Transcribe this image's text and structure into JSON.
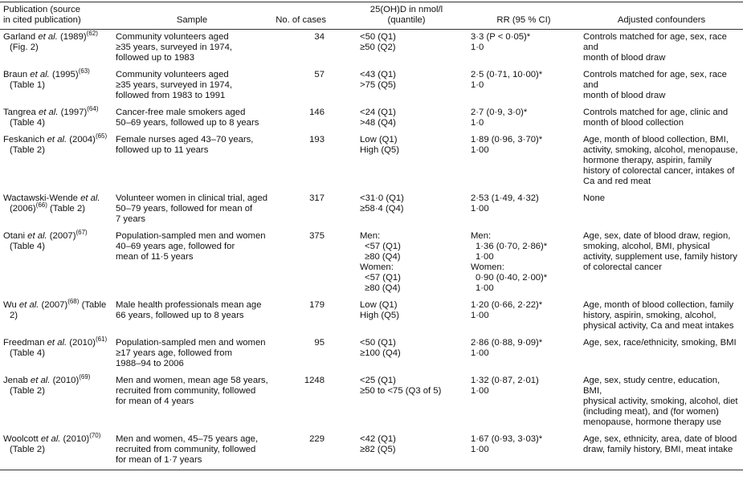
{
  "table": {
    "header": [
      "Publication (source in cited publication)",
      "Sample",
      "No. of cases",
      "25(OH)D in nmol/l (quantile)",
      "RR (95 % CI)",
      "Adjusted confounders"
    ],
    "rows": [
      {
        "publication": {
          "name": "Garland",
          "etal": "et al.",
          "year": "(1989)",
          "ref": "(62)",
          "source": "(Fig. 2)"
        },
        "sample": [
          "Community volunteers aged",
          "≥35 years, surveyed in 1974,",
          "followed up to 1983"
        ],
        "cases": 34,
        "quantile": [
          "<50 (Q1)",
          "≥50 (Q2)"
        ],
        "rr": [
          "3·3 (P < 0·05)*",
          "1·0"
        ],
        "confounders": [
          "Controls matched for age, sex, race and",
          "month of blood draw"
        ]
      },
      {
        "publication": {
          "name": "Braun",
          "etal": "et al.",
          "year": "(1995)",
          "ref": "(63)",
          "source": "(Table 1)"
        },
        "sample": [
          "Community volunteers aged",
          "≥35 years, surveyed in 1974,",
          "followed from 1983 to 1991"
        ],
        "cases": 57,
        "quantile": [
          "<43 (Q1)",
          ">75 (Q5)"
        ],
        "rr": [
          "2·5 (0·71, 10·00)*",
          "1·0"
        ],
        "confounders": [
          "Controls matched for age, sex, race and",
          "month of blood draw"
        ]
      },
      {
        "publication": {
          "name": "Tangrea",
          "etal": "et al.",
          "year": "(1997)",
          "ref": "(64)",
          "source": "(Table 4)"
        },
        "sample": [
          "Cancer-free male smokers aged",
          "50–69 years, followed up to 8 years"
        ],
        "cases": 146,
        "quantile": [
          "<24 (Q1)",
          ">48 (Q4)"
        ],
        "rr": [
          "2·7 (0·9, 3·0)*",
          "1·0"
        ],
        "confounders": [
          "Controls matched for age, clinic and",
          "month of blood collection"
        ]
      },
      {
        "publication": {
          "name": "Feskanich",
          "etal": "et al.",
          "year": "(2004)",
          "ref": "(65)",
          "source": "(Table 2)"
        },
        "sample": [
          "Female nurses aged 43–70 years,",
          "followed up to 11 years"
        ],
        "cases": 193,
        "quantile": [
          "Low (Q1)",
          "High (Q5)"
        ],
        "rr": [
          "1·89 (0·96, 3·70)*",
          "1·00"
        ],
        "confounders": [
          "Age, month of blood collection, BMI,",
          "activity, smoking, alcohol, menopause,",
          "hormone therapy, aspirin, family",
          "history of colorectal cancer, intakes of",
          "Ca and red meat"
        ]
      },
      {
        "publication": {
          "name": "Wactawski-Wende",
          "etal": "et al.",
          "year": "(2006)",
          "ref": "(66)",
          "source": "(Table 2)"
        },
        "sample": [
          "Volunteer women in clinical trial, aged",
          "50–79 years, followed for mean of",
          "7 years"
        ],
        "cases": 317,
        "quantile": [
          "<31·0 (Q1)",
          "≥58·4 (Q4)"
        ],
        "rr": [
          "2·53 (1·49, 4·32)",
          "1·00"
        ],
        "confounders": [
          "None"
        ]
      },
      {
        "publication": {
          "name": "Otani",
          "etal": "et al.",
          "year": "(2007)",
          "ref": "(67)",
          "source": "(Table 4)"
        },
        "sample": [
          "Population-sampled men and women",
          "40–69 years age, followed for",
          "mean of 11·5 years"
        ],
        "cases": 375,
        "quantile": [
          "Men:",
          "<57 (Q1)",
          "≥80 (Q4)",
          "Women:",
          "<57 (Q1)",
          "≥80 (Q4)"
        ],
        "rr": [
          "Men:",
          "1·36 (0·70, 2·86)*",
          "1·00",
          "Women:",
          "0·90 (0·40, 2·00)*",
          "1·00"
        ],
        "confounders": [
          "Age, sex, date of blood draw, region,",
          "smoking, alcohol, BMI, physical",
          "activity, supplement use, family history",
          "of colorectal cancer"
        ]
      },
      {
        "publication": {
          "name": "Wu",
          "etal": "et al.",
          "year": "(2007)",
          "ref": "(68)",
          "source": "(Table 2)"
        },
        "sample": [
          "Male health professionals mean age",
          "66 years, followed up to 8 years"
        ],
        "cases": 179,
        "quantile": [
          "Low (Q1)",
          "High (Q5)"
        ],
        "rr": [
          "1·20 (0·66, 2·22)*",
          "1·00"
        ],
        "confounders": [
          "Age, month of blood collection, family",
          "history, aspirin, smoking, alcohol,",
          "physical activity, Ca and meat intakes"
        ]
      },
      {
        "publication": {
          "name": "Freedman",
          "etal": "et al.",
          "year": "(2010)",
          "ref": "(61)",
          "source": "(Table 4)"
        },
        "sample": [
          "Population-sampled men and women",
          "≥17 years age, followed from",
          "1988–94 to 2006"
        ],
        "cases": 95,
        "quantile": [
          "<50 (Q1)",
          "≥100 (Q4)"
        ],
        "rr": [
          "2·86 (0·88, 9·09)*",
          "1·00"
        ],
        "confounders": [
          "Age, sex, race/ethnicity, smoking, BMI"
        ]
      },
      {
        "publication": {
          "name": "Jenab",
          "etal": "et al.",
          "year": "(2010)",
          "ref": "(69)",
          "source": "(Table 2)"
        },
        "sample": [
          "Men and women, mean age 58 years,",
          "recruited from community, followed",
          "for mean of 4 years"
        ],
        "cases": 1248,
        "quantile": [
          "<25 (Q1)",
          "≥50 to <75 (Q3 of 5)"
        ],
        "rr": [
          "1·32 (0·87, 2·01)",
          "1·00"
        ],
        "confounders": [
          "Age, sex, study centre, education, BMI,",
          "physical activity, smoking, alcohol, diet",
          "(including meat), and (for women)",
          "menopause, hormone therapy use"
        ]
      },
      {
        "publication": {
          "name": "Woolcott",
          "etal": "et al.",
          "year": "(2010)",
          "ref": "(70)",
          "source": "(Table 2)"
        },
        "sample": [
          "Men and women, 45–75 years age,",
          "recruited from community, followed",
          "for mean of 1·7 years"
        ],
        "cases": 229,
        "quantile": [
          "<42 (Q1)",
          "≥82 (Q5)"
        ],
        "rr": [
          "1·67 (0·93, 3·03)*",
          "1·00"
        ],
        "confounders": [
          "Age, sex, ethnicity, area, date of blood",
          "draw, family history, BMI, meat intake"
        ]
      }
    ]
  }
}
